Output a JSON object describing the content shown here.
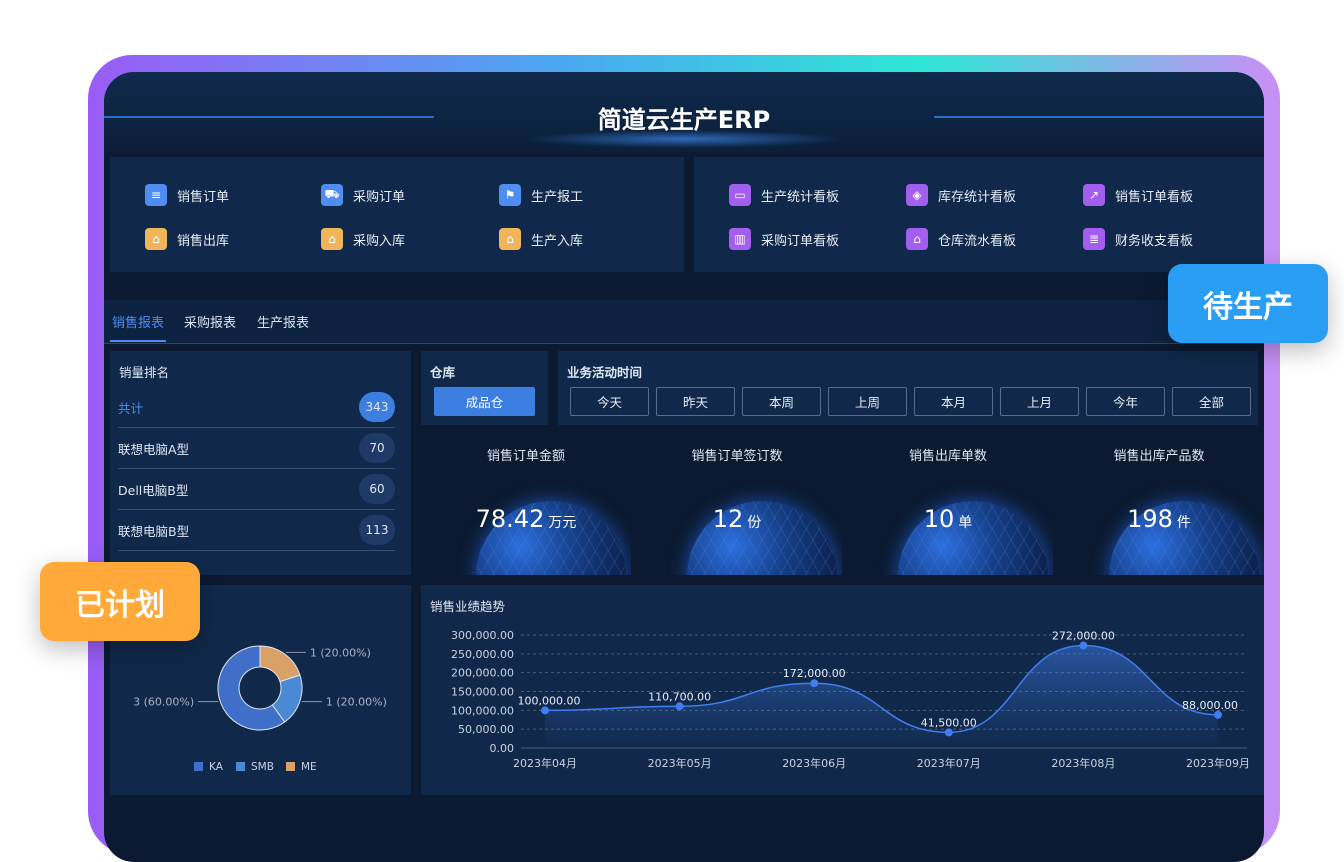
{
  "header": {
    "title": "简道云生产ERP"
  },
  "nav_left": [
    {
      "label": "销售订单",
      "icon": "document-icon",
      "color": "#4f8ef0"
    },
    {
      "label": "采购订单",
      "icon": "cart-icon",
      "color": "#4f8ef0"
    },
    {
      "label": "生产报工",
      "icon": "flag-icon",
      "color": "#4f8ef0"
    },
    {
      "label": "销售出库",
      "icon": "warehouse-out-icon",
      "color": "#f0b45a"
    },
    {
      "label": "采购入库",
      "icon": "warehouse-in-icon",
      "color": "#f0b45a"
    },
    {
      "label": "生产入库",
      "icon": "production-in-icon",
      "color": "#f0b45a"
    }
  ],
  "nav_right": [
    {
      "label": "生产统计看板",
      "icon": "monitor-chart-icon",
      "color": "#a35ef0"
    },
    {
      "label": "库存统计看板",
      "icon": "box-icon",
      "color": "#a35ef0"
    },
    {
      "label": "销售订单看板",
      "icon": "line-chart-icon",
      "color": "#a35ef0"
    },
    {
      "label": "采购订单看板",
      "icon": "bar-chart-icon",
      "color": "#a35ef0"
    },
    {
      "label": "仓库流水看板",
      "icon": "house-icon",
      "color": "#a35ef0"
    },
    {
      "label": "财务收支看板",
      "icon": "coins-icon",
      "color": "#a35ef0"
    }
  ],
  "tabs": [
    {
      "label": "销售报表",
      "active": true
    },
    {
      "label": "采购报表"
    },
    {
      "label": "生产报表"
    }
  ],
  "ranking": {
    "title": "销量排名",
    "rows": [
      {
        "name": "共计",
        "value": "343"
      },
      {
        "name": "联想电脑A型",
        "value": "70"
      },
      {
        "name": "Dell电脑B型",
        "value": "60"
      },
      {
        "name": "联想电脑B型",
        "value": "113"
      }
    ]
  },
  "warehouse": {
    "title": "仓库",
    "selected": "成品仓"
  },
  "time_filter": {
    "title": "业务活动时间",
    "options": [
      "今天",
      "昨天",
      "本周",
      "上周",
      "本月",
      "上月",
      "今年",
      "全部"
    ]
  },
  "kpis": [
    {
      "label": "销售订单金额",
      "value": "78.42",
      "unit": "万元"
    },
    {
      "label": "销售订单签订数",
      "value": "12",
      "unit": "份"
    },
    {
      "label": "销售出库单数",
      "value": "10",
      "unit": "单"
    },
    {
      "label": "销售出库产品数",
      "value": "198",
      "unit": "件"
    }
  ],
  "badges": {
    "pending": "待生产",
    "planned": "已计划"
  },
  "chart_data": [
    {
      "type": "pie",
      "donut": true,
      "categories": [
        "KA",
        "SMB",
        "ME"
      ],
      "values": [
        3,
        1,
        1
      ],
      "labels": [
        "3 (60.00%)",
        "1 (20.00%)",
        "1 (20.00%)"
      ],
      "colors": [
        "#3f6fc8",
        "#4a8ad4",
        "#d9a068"
      ],
      "legend": "bottom"
    },
    {
      "type": "area",
      "title": "销售业绩趋势",
      "categories": [
        "2023年04月",
        "2023年05月",
        "2023年06月",
        "2023年07月",
        "2023年08月",
        "2023年09月"
      ],
      "values": [
        100000,
        110700,
        172000,
        41500,
        272000,
        88000
      ],
      "data_labels": [
        "100,000.00",
        "110,700.00",
        "172,000.00",
        "41,500.00",
        "272,000.00",
        "88,000.00"
      ],
      "ylim": [
        0,
        300000
      ],
      "yticks": [
        "0.00",
        "50,000.00",
        "100,000.00",
        "150,000.00",
        "200,000.00",
        "250,000.00",
        "300,000.00"
      ],
      "grid": true,
      "color": "#3f7ef0"
    }
  ]
}
